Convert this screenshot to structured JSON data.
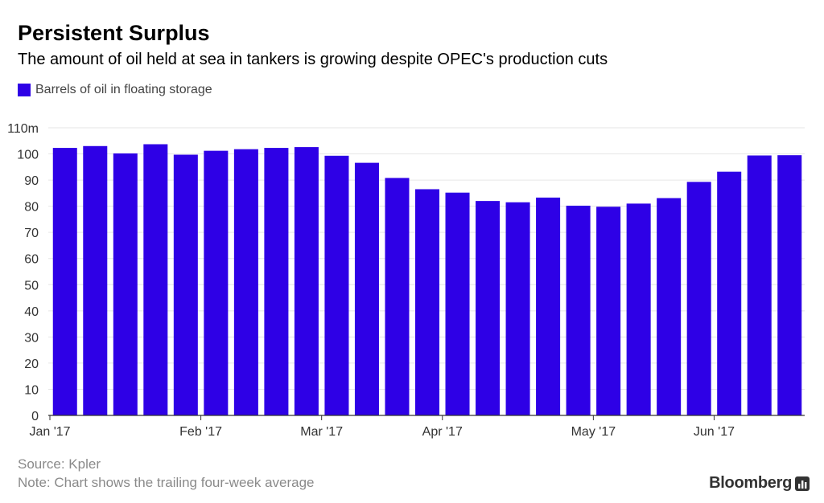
{
  "title": "Persistent Surplus",
  "subtitle": "The amount of oil held at sea in tankers is growing despite OPEC's production cuts",
  "footer": {
    "source": "Source: Kpler",
    "note": "Note: Chart shows the trailing four-week average",
    "brand": "Bloomberg"
  },
  "colors": {
    "bar": "#2e00e6",
    "grid": "#e6e6e6",
    "axis": "#333333",
    "tick_text": "#333333"
  },
  "chart_data": {
    "type": "bar",
    "series": [
      {
        "name": "Barrels of oil in floating storage",
        "values": [
          102.3,
          103,
          100.2,
          103.7,
          99.7,
          101.2,
          101.8,
          102.3,
          102.6,
          99.3,
          96.6,
          90.8,
          86.5,
          85.2,
          82,
          81.5,
          83.3,
          80.2,
          79.8,
          81,
          83.1,
          89.3,
          93.2,
          99.4,
          99.5
        ]
      }
    ],
    "unit_suffix": "m",
    "ylim": [
      0,
      110
    ],
    "yticks": [
      0,
      10,
      20,
      30,
      40,
      50,
      60,
      70,
      80,
      90,
      100,
      110
    ],
    "ytick_labels": [
      "0",
      "10",
      "20",
      "30",
      "40",
      "50",
      "60",
      "70",
      "80",
      "90",
      "100",
      "110m"
    ],
    "xtick_labels": [
      "Jan '17",
      "Feb '17",
      "Mar '17",
      "Apr '17",
      "May '17",
      "Jun '17"
    ],
    "xtick_positions": [
      -0.5,
      4.5,
      8.5,
      12.5,
      17.5,
      21.5
    ],
    "grid": true,
    "legend_position": "top-left"
  }
}
